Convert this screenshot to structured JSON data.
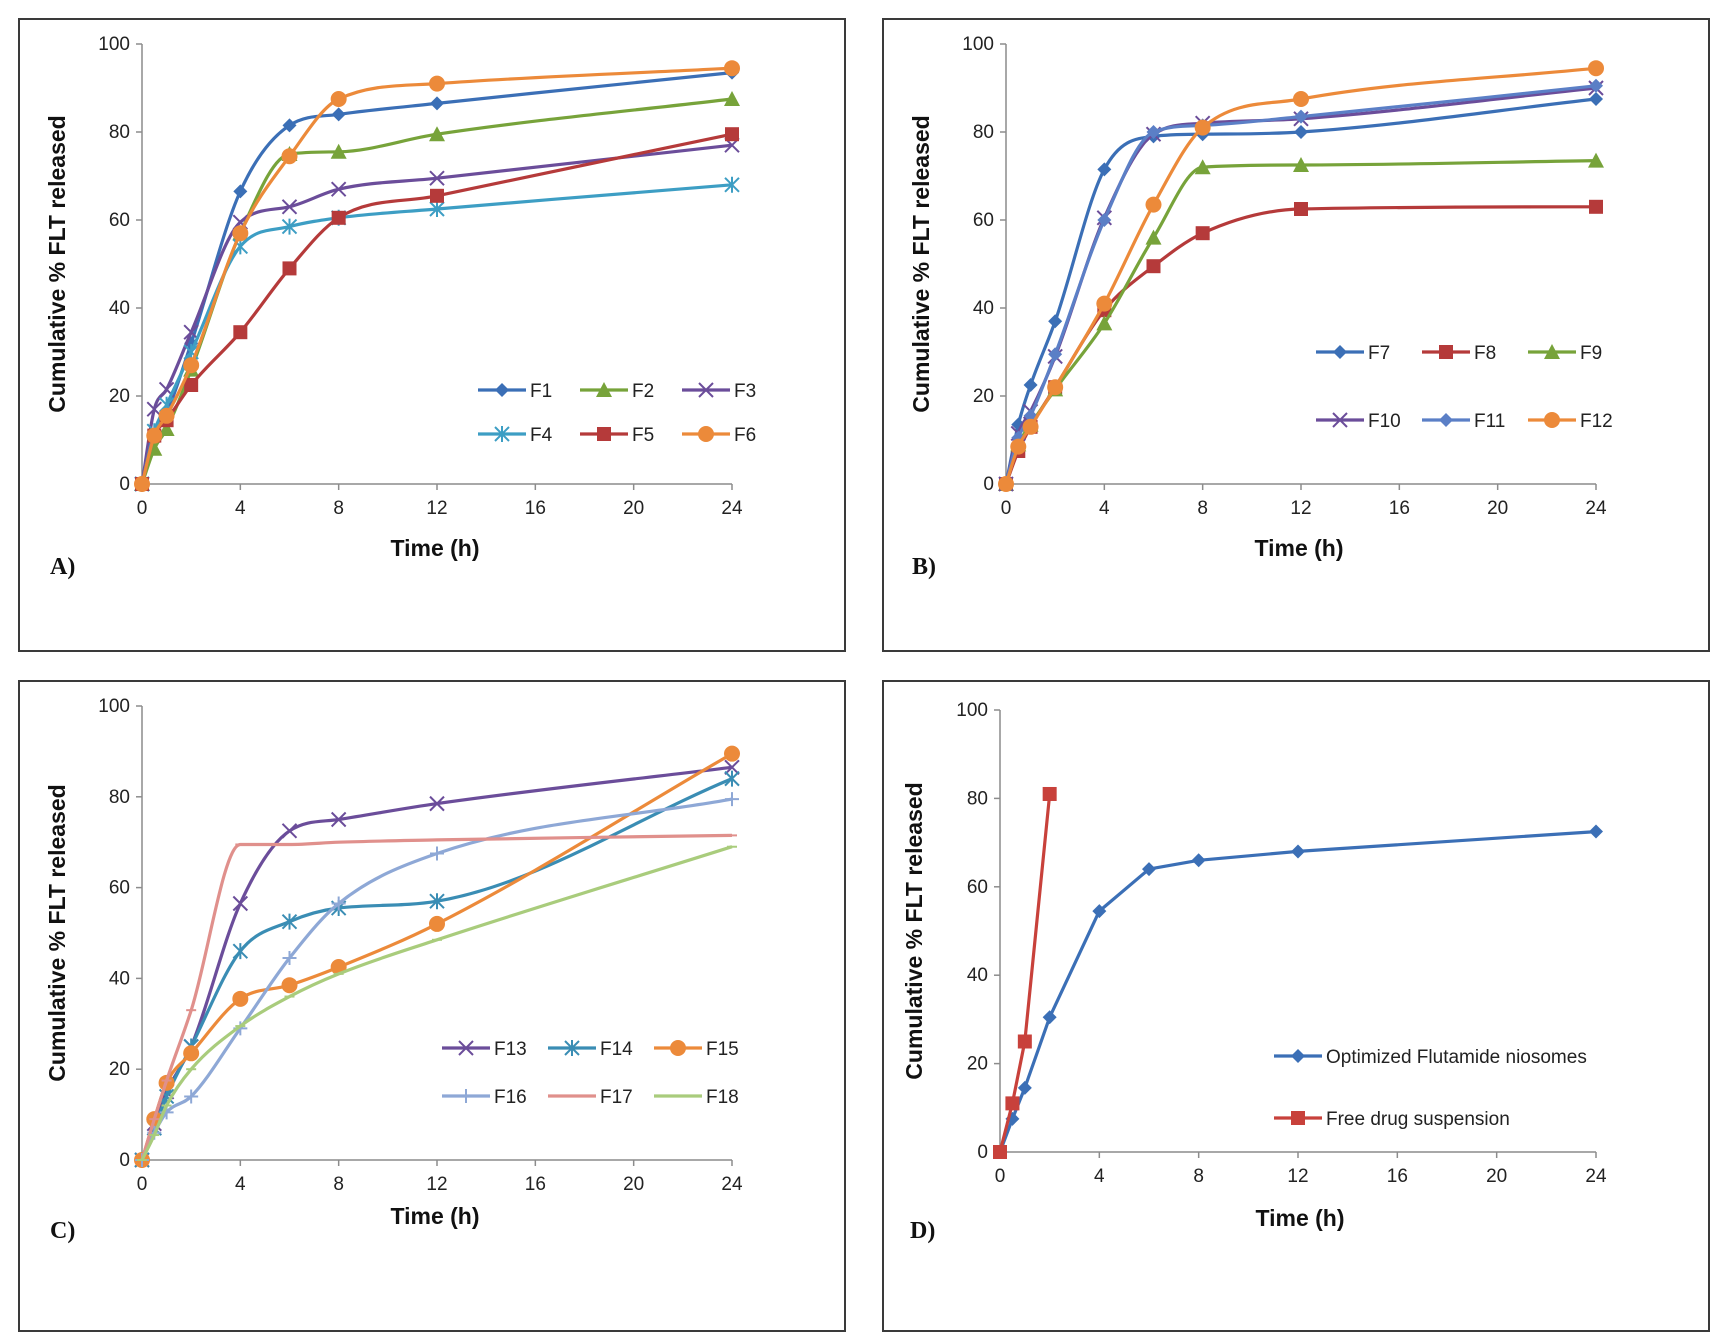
{
  "chart_data": [
    {
      "id": "A",
      "type": "line",
      "panel_label": "A)",
      "xlabel": "Time (h)",
      "ylabel": "Cumulative % FLT released",
      "xlim": [
        0,
        24
      ],
      "ylim": [
        0,
        100
      ],
      "xticks": [
        0,
        4,
        8,
        12,
        16,
        20,
        24
      ],
      "yticks": [
        0,
        20,
        40,
        60,
        80,
        100
      ],
      "legend_position": "bottom-right",
      "legend_columns": 3,
      "x": [
        0,
        0.5,
        1,
        2,
        4,
        6,
        8,
        12,
        24
      ],
      "series": [
        {
          "name": "F1",
          "color": "#3b6fb6",
          "marker": "diamond",
          "values": [
            0,
            11,
            16,
            32,
            66.5,
            81.5,
            84,
            86.5,
            93.5
          ]
        },
        {
          "name": "F2",
          "color": "#77a33a",
          "marker": "triangle",
          "values": [
            0,
            8,
            12.5,
            26,
            57,
            75,
            75.5,
            79.5,
            87.5
          ]
        },
        {
          "name": "F3",
          "color": "#6b4d9a",
          "marker": "x",
          "values": [
            0,
            17,
            21.5,
            34.5,
            59.5,
            63,
            67,
            69.5,
            77
          ]
        },
        {
          "name": "F4",
          "color": "#3d9ec4",
          "marker": "asterisk",
          "values": [
            0,
            12,
            18,
            30,
            54,
            58.5,
            60.5,
            62.5,
            68
          ]
        },
        {
          "name": "F5",
          "color": "#b53a3a",
          "marker": "square",
          "values": [
            0,
            11,
            14.5,
            22.5,
            34.5,
            49,
            60.5,
            65.5,
            79.5
          ]
        },
        {
          "name": "F6",
          "color": "#ec8a3a",
          "marker": "circle",
          "values": [
            0,
            11,
            15.5,
            27,
            57,
            74.5,
            87.5,
            91,
            94.5
          ]
        }
      ]
    },
    {
      "id": "B",
      "type": "line",
      "panel_label": "B)",
      "xlabel": "Time (h)",
      "ylabel": "Cumulative % FLT released",
      "xlim": [
        0,
        24
      ],
      "ylim": [
        0,
        100
      ],
      "xticks": [
        0,
        4,
        8,
        12,
        16,
        20,
        24
      ],
      "yticks": [
        0,
        20,
        40,
        60,
        80,
        100
      ],
      "legend_position": "center-right",
      "legend_columns": 3,
      "x": [
        0,
        0.5,
        1,
        2,
        4,
        6,
        8,
        12,
        24
      ],
      "series": [
        {
          "name": "F7",
          "color": "#3b6fb6",
          "marker": "diamond",
          "values": [
            0,
            13.5,
            22.5,
            37,
            71.5,
            79,
            79.5,
            80,
            87.5
          ]
        },
        {
          "name": "F8",
          "color": "#b53a3a",
          "marker": "square",
          "values": [
            0,
            7.5,
            13,
            22,
            39.5,
            49.5,
            57,
            62.5,
            63
          ]
        },
        {
          "name": "F9",
          "color": "#77a33a",
          "marker": "triangle",
          "values": [
            0,
            9,
            13.5,
            21.5,
            36.5,
            56,
            72,
            72.5,
            73.5
          ]
        },
        {
          "name": "F10",
          "color": "#6b4d9a",
          "marker": "x",
          "values": [
            0,
            11.5,
            16.5,
            29,
            60.5,
            79.5,
            82,
            83,
            90
          ]
        },
        {
          "name": "F11",
          "color": "#5b7fc6",
          "marker": "diamond",
          "values": [
            0,
            10.5,
            15.5,
            29.5,
            60,
            80,
            81.5,
            83.5,
            90.5
          ]
        },
        {
          "name": "F12",
          "color": "#ec8a3a",
          "marker": "circle",
          "values": [
            0,
            8.5,
            13,
            22,
            41,
            63.5,
            81,
            87.5,
            94.5
          ]
        }
      ]
    },
    {
      "id": "C",
      "type": "line",
      "panel_label": "C)",
      "xlabel": "Time (h)",
      "ylabel": "Cumulative % FLT released",
      "xlim": [
        0,
        24
      ],
      "ylim": [
        0,
        100
      ],
      "xticks": [
        0,
        4,
        8,
        12,
        16,
        20,
        24
      ],
      "yticks": [
        0,
        20,
        40,
        60,
        80,
        100
      ],
      "legend_position": "bottom-right",
      "legend_columns": 3,
      "x": [
        0,
        0.5,
        1,
        2,
        4,
        6,
        8,
        12,
        24
      ],
      "series": [
        {
          "name": "F13",
          "color": "#6b4d9a",
          "marker": "x",
          "values": [
            0,
            8,
            15,
            25,
            56.5,
            72.5,
            75,
            78.5,
            86.5
          ]
        },
        {
          "name": "F14",
          "color": "#3a8db4",
          "marker": "asterisk",
          "values": [
            0,
            7,
            14,
            25,
            46,
            52.5,
            55.5,
            57,
            84
          ]
        },
        {
          "name": "F15",
          "color": "#ec8a3a",
          "marker": "circle",
          "values": [
            0,
            9,
            17,
            23.5,
            35.5,
            38.5,
            42.5,
            52,
            89.5
          ]
        },
        {
          "name": "F16",
          "color": "#8ea8d6",
          "marker": "plus",
          "values": [
            0,
            6,
            10.5,
            14,
            29,
            44.5,
            56.5,
            67.5,
            79.5
          ]
        },
        {
          "name": "F17",
          "color": "#e0908c",
          "marker": "dash",
          "values": [
            0,
            9,
            17.5,
            33,
            69.5,
            69.5,
            70,
            70.5,
            71.5
          ]
        },
        {
          "name": "F18",
          "color": "#a9cc7c",
          "marker": "dash",
          "values": [
            0,
            5.5,
            12,
            20,
            29.5,
            36,
            41,
            48.5,
            69
          ]
        }
      ]
    },
    {
      "id": "D",
      "type": "line",
      "panel_label": "D)",
      "xlabel": "Time (h)",
      "ylabel": "Cumulative % FLT released",
      "xlim": [
        0,
        24
      ],
      "ylim": [
        0,
        100
      ],
      "xticks": [
        0,
        4,
        8,
        12,
        16,
        20,
        24
      ],
      "yticks": [
        0,
        20,
        40,
        60,
        80,
        100
      ],
      "legend_position": "bottom-right",
      "legend_columns": 1,
      "series": [
        {
          "name": "Optimized Flutamide niosomes",
          "color": "#3b6fb6",
          "marker": "diamond",
          "straight": true,
          "x": [
            0,
            0.5,
            1,
            2,
            4,
            6,
            8,
            12,
            24
          ],
          "values": [
            0,
            7.5,
            14.5,
            30.5,
            54.5,
            64,
            66,
            68,
            72.5
          ]
        },
        {
          "name": "Free drug suspension",
          "color": "#c8413b",
          "marker": "square",
          "straight": true,
          "x": [
            0,
            0.5,
            1,
            2
          ],
          "values": [
            0,
            11,
            25,
            81
          ]
        }
      ]
    }
  ]
}
